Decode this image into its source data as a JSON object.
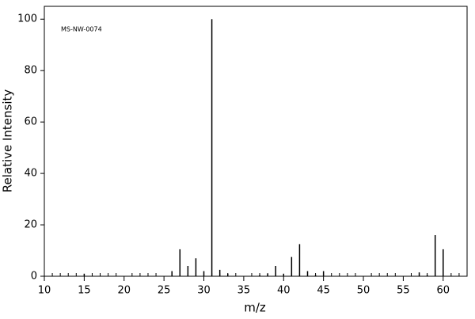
{
  "chart_data": {
    "type": "stick",
    "annotation": "MS-NW-0074",
    "xlabel": "m/z",
    "ylabel": "Relative Intensity",
    "x": [
      15,
      26,
      27,
      28,
      29,
      30,
      31,
      32,
      33,
      37,
      38,
      39,
      40,
      41,
      42,
      43,
      44,
      45,
      57,
      58,
      59,
      60
    ],
    "values": [
      1,
      2,
      10.5,
      4,
      7,
      2,
      100,
      2.5,
      1,
      0.5,
      1,
      4,
      1,
      7.5,
      12.5,
      2,
      0.5,
      2,
      1.5,
      0.5,
      16,
      10.5
    ],
    "color": "#000000",
    "xlim": [
      10,
      63
    ],
    "ylim": [
      0,
      105
    ],
    "xticks": [
      10,
      15,
      20,
      25,
      30,
      35,
      40,
      45,
      50,
      55,
      60
    ],
    "yticks": [
      0,
      20,
      40,
      60,
      80,
      100
    ],
    "xminorticks": [
      11,
      12,
      13,
      14,
      16,
      17,
      18,
      19,
      21,
      22,
      23,
      24,
      26,
      27,
      28,
      29,
      31,
      32,
      33,
      34,
      36,
      37,
      38,
      39,
      41,
      42,
      43,
      44,
      46,
      47,
      48,
      49,
      51,
      52,
      53,
      54,
      56,
      57,
      58,
      59,
      61,
      62
    ]
  }
}
